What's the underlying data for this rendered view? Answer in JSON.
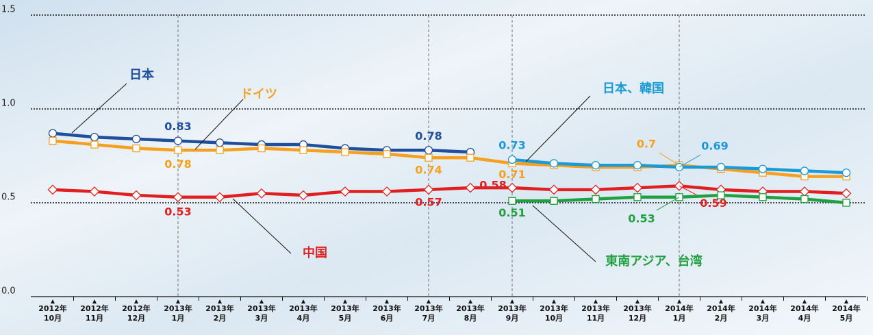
{
  "chart_data": {
    "type": "line",
    "categories": [
      "2012年\n10月",
      "2012年\n11月",
      "2012年\n12月",
      "2013年\n1月",
      "2013年\n2月",
      "2013年\n3月",
      "2013年\n4月",
      "2013年\n5月",
      "2013年\n6月",
      "2013年\n7月",
      "2013年\n8月",
      "2013年\n9月",
      "2013年\n10月",
      "2013年\n11月",
      "2013年\n12月",
      "2014年\n1月",
      "2014年\n2月",
      "2014年\n3月",
      "2014年\n4月",
      "2014年\n5月"
    ],
    "ylim": [
      0,
      1.5
    ],
    "yticks": [
      {
        "value": 0,
        "label": "0.0"
      },
      0.5,
      {
        "value": 1,
        "label": "1.0"
      },
      1.5
    ],
    "grid": true,
    "series": [
      {
        "name": "日本",
        "color": "#1f4e9c",
        "marker": "circle",
        "values": [
          0.87,
          0.85,
          0.84,
          0.83,
          0.82,
          0.81,
          0.81,
          0.79,
          0.78,
          0.78,
          0.77,
          null,
          null,
          null,
          null,
          null,
          null,
          null,
          null,
          null
        ],
        "value_labels": [
          null,
          null,
          null,
          "0.83",
          null,
          null,
          null,
          null,
          null,
          "0.78",
          null,
          null,
          null,
          null,
          null,
          null,
          null,
          null,
          null,
          null
        ]
      },
      {
        "name": "ドイツ",
        "color": "#f5a020",
        "marker": "square",
        "values": [
          0.83,
          0.81,
          0.79,
          0.78,
          0.78,
          0.79,
          0.78,
          0.77,
          0.76,
          0.74,
          0.74,
          0.71,
          0.7,
          0.69,
          0.69,
          0.7,
          0.68,
          0.66,
          0.64,
          0.64
        ],
        "value_labels": [
          null,
          null,
          null,
          "0.78",
          null,
          null,
          null,
          null,
          null,
          "0.74",
          null,
          "0.71",
          null,
          null,
          null,
          "0.7",
          null,
          null,
          null,
          null
        ]
      },
      {
        "name": "中国",
        "color": "#e02020",
        "marker": "diamond",
        "values": [
          0.57,
          0.56,
          0.54,
          0.53,
          0.53,
          0.55,
          0.54,
          0.56,
          0.56,
          0.57,
          0.58,
          0.58,
          0.57,
          0.57,
          0.58,
          0.59,
          0.57,
          0.56,
          0.56,
          0.55
        ],
        "value_labels": [
          null,
          null,
          null,
          "0.53",
          null,
          null,
          null,
          null,
          null,
          "0.57",
          null,
          "0.58",
          null,
          null,
          null,
          "0.59",
          null,
          null,
          null,
          null
        ]
      },
      {
        "name": "日本、韓国",
        "color": "#1a9ad6",
        "marker": "circle",
        "values": [
          null,
          null,
          null,
          null,
          null,
          null,
          null,
          null,
          null,
          null,
          null,
          0.73,
          0.71,
          0.7,
          0.7,
          0.69,
          0.69,
          0.68,
          0.67,
          0.66
        ],
        "value_labels": [
          null,
          null,
          null,
          null,
          null,
          null,
          null,
          null,
          null,
          null,
          null,
          "0.73",
          null,
          null,
          null,
          "0.69",
          null,
          null,
          null,
          null
        ]
      },
      {
        "name": "東南アジア、台湾",
        "color": "#20a040",
        "marker": "square",
        "values": [
          null,
          null,
          null,
          null,
          null,
          null,
          null,
          null,
          null,
          null,
          null,
          0.51,
          0.51,
          0.52,
          0.53,
          0.53,
          0.54,
          0.53,
          0.52,
          0.5
        ],
        "value_labels": [
          null,
          null,
          null,
          null,
          null,
          null,
          null,
          null,
          null,
          null,
          null,
          "0.51",
          null,
          null,
          null,
          "0.53",
          null,
          null,
          null,
          null
        ]
      }
    ]
  }
}
